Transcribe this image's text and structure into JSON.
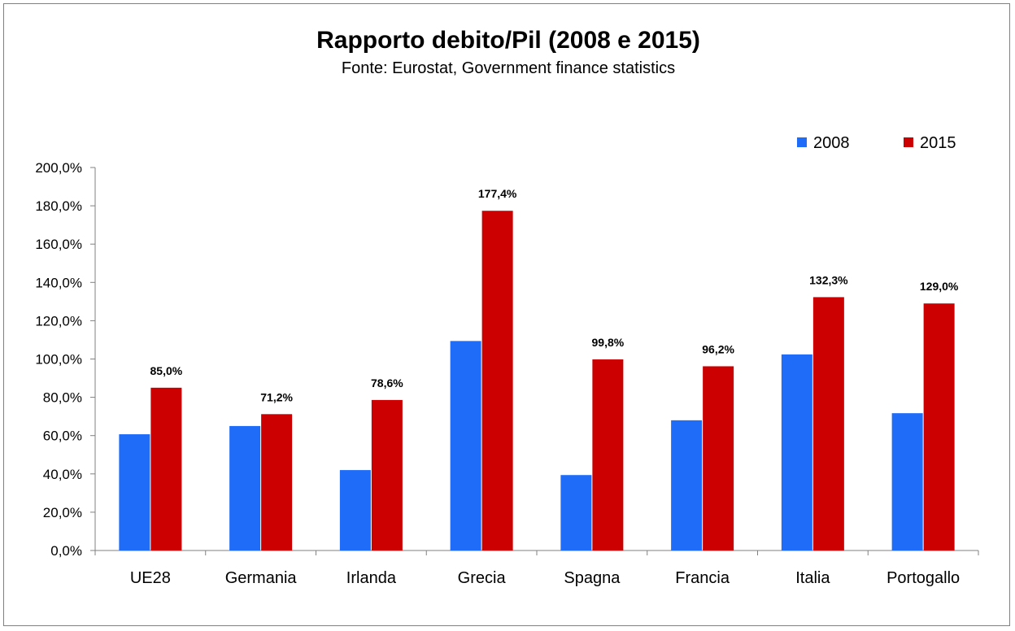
{
  "chart_data": {
    "type": "bar",
    "title": "Rapporto debito/Pil (2008 e 2015)",
    "subtitle": "Fonte: Eurostat, Government finance statistics",
    "categories": [
      "UE28",
      "Germania",
      "Irlanda",
      "Grecia",
      "Spagna",
      "Francia",
      "Italia",
      "Portogallo"
    ],
    "series": [
      {
        "name": "2008",
        "color": "#1F6CF9",
        "values": [
          60.7,
          65.0,
          42.0,
          109.4,
          39.4,
          68.0,
          102.4,
          71.7
        ]
      },
      {
        "name": "2015",
        "color": "#CC0000",
        "values": [
          85.0,
          71.2,
          78.6,
          177.4,
          99.8,
          96.2,
          132.3,
          129.0
        ]
      }
    ],
    "data_labels": {
      "series": "2015",
      "texts": [
        "85,0%",
        "71,2%",
        "78,6%",
        "177,4%",
        "99,8%",
        "96,2%",
        "132,3%",
        "129,0%"
      ]
    },
    "y_ticks": [
      "0,0%",
      "20,0%",
      "40,0%",
      "60,0%",
      "80,0%",
      "100,0%",
      "120,0%",
      "140,0%",
      "160,0%",
      "180,0%",
      "200,0%"
    ],
    "ylim": [
      0,
      200
    ],
    "grid": false,
    "legend_position": "top-right",
    "xlabel": "",
    "ylabel": ""
  }
}
